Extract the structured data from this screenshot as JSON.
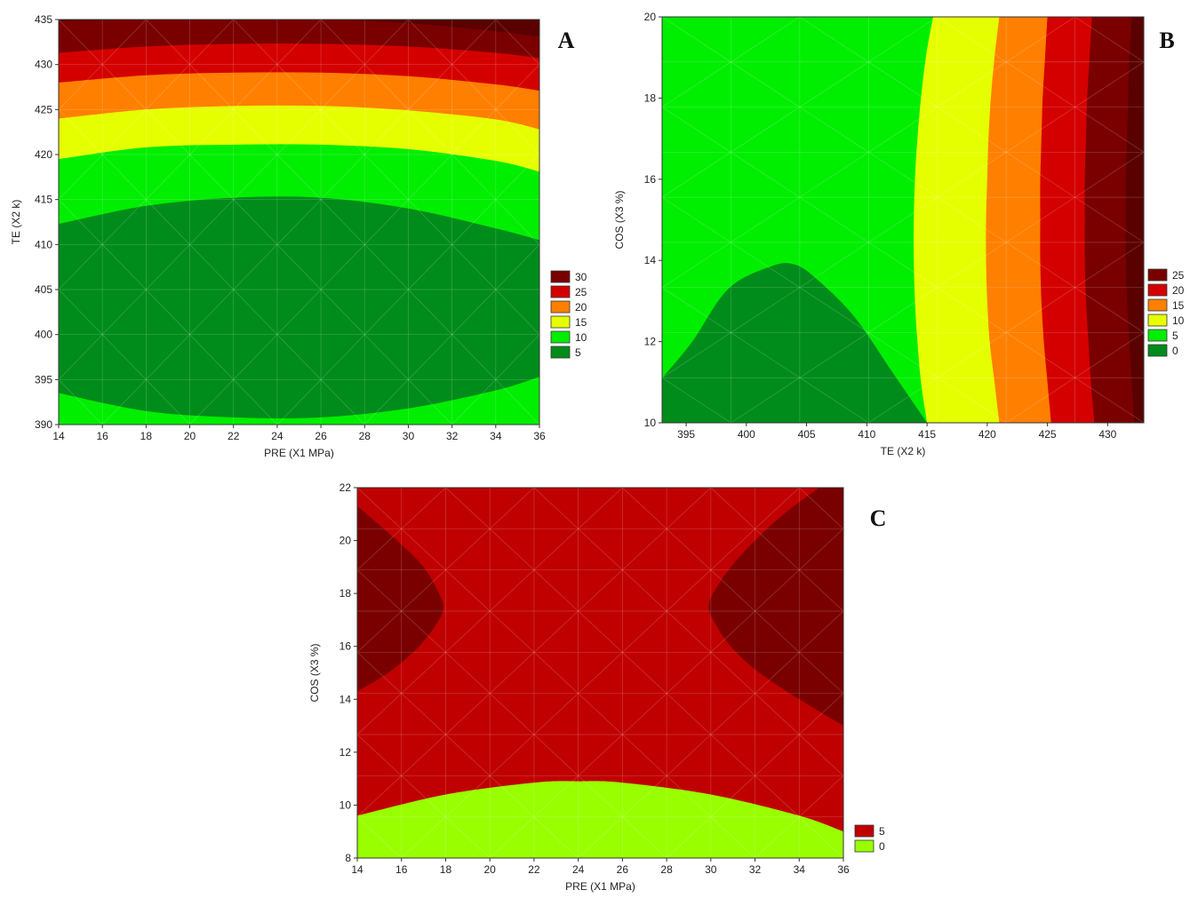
{
  "chart_data": [
    {
      "type": "heatmap",
      "panel_label": "A",
      "xlabel": "PRE (X1 MPa)",
      "ylabel": "TE (X2 k)",
      "xlim": [
        14,
        36
      ],
      "ylim": [
        390,
        435
      ],
      "xticks": [
        14,
        16,
        18,
        20,
        22,
        24,
        26,
        28,
        30,
        32,
        34,
        36
      ],
      "yticks": [
        390,
        395,
        400,
        405,
        410,
        415,
        420,
        425,
        430,
        435
      ],
      "legend": {
        "placement": "right-bottom",
        "labels": [
          "30",
          "25",
          "20",
          "15",
          "10",
          "5"
        ],
        "colors": [
          "#7a0000",
          "#d40000",
          "#ff7f00",
          "#e6ff00",
          "#00ee00",
          "#008c1a"
        ]
      },
      "contours": [
        {
          "level": 5,
          "x": [
            14,
            18,
            22,
            26,
            30,
            34,
            36
          ],
          "y_low": [
            393.5,
            391.5,
            390.8,
            390.8,
            391.8,
            393.8,
            395.3
          ],
          "y_high": [
            412.3,
            414.3,
            415.2,
            415.2,
            414.0,
            411.8,
            410.5
          ]
        },
        {
          "level": 10,
          "x": [
            14,
            18,
            22,
            26,
            30,
            34,
            36
          ],
          "y_high": [
            419.5,
            420.8,
            421.1,
            421.1,
            420.6,
            419.3,
            418.1
          ]
        },
        {
          "level": 15,
          "x": [
            14,
            18,
            22,
            26,
            30,
            34,
            36
          ],
          "y_high": [
            424.0,
            425.0,
            425.4,
            425.4,
            424.9,
            423.9,
            422.8
          ]
        },
        {
          "level": 20,
          "x": [
            14,
            18,
            22,
            26,
            30,
            34,
            36
          ],
          "y_high": [
            428.0,
            428.8,
            429.1,
            429.1,
            428.7,
            427.8,
            427.1
          ]
        },
        {
          "level": 25,
          "x": [
            14,
            18,
            22,
            26,
            30,
            34,
            36
          ],
          "y_high": [
            431.3,
            432.0,
            432.3,
            432.3,
            432.0,
            431.3,
            430.7
          ]
        },
        {
          "level": 30,
          "x": [
            14,
            18,
            22,
            26,
            30,
            34,
            36
          ],
          "y_high": [
            434.8,
            435.0,
            435.0,
            435.0,
            434.6,
            433.7,
            433.1
          ]
        }
      ]
    },
    {
      "type": "heatmap",
      "panel_label": "B",
      "xlabel": "TE (X2 k)",
      "ylabel": "COS (X3 %)",
      "xlim": [
        393,
        433
      ],
      "ylim": [
        10,
        20
      ],
      "xticks": [
        395,
        400,
        405,
        410,
        415,
        420,
        425,
        430
      ],
      "yticks": [
        10,
        12,
        14,
        16,
        18,
        20
      ],
      "legend": {
        "placement": "right-bottom",
        "labels": [
          "25",
          "20",
          "15",
          "10",
          "5",
          "0"
        ],
        "colors": [
          "#7a0000",
          "#d40000",
          "#ff7f00",
          "#e6ff00",
          "#00ee00",
          "#008c1a"
        ]
      },
      "contours": [
        {
          "level": 0,
          "x": [
            393,
            395.5,
            398.5,
            402,
            404,
            406,
            409,
            412,
            415
          ],
          "y": [
            11.1,
            12.0,
            13.3,
            13.85,
            13.9,
            13.5,
            12.6,
            11.3,
            10.0
          ]
        },
        {
          "level": 5,
          "y": [
            10,
            11,
            12,
            13,
            14,
            15,
            16,
            17,
            18,
            19,
            20
          ],
          "x": [
            415.0,
            414.5,
            414.2,
            414.0,
            413.9,
            413.9,
            414.0,
            414.2,
            414.5,
            414.9,
            415.5
          ]
        },
        {
          "level": 10,
          "y": [
            10,
            11,
            12,
            13,
            14,
            15,
            16,
            17,
            18,
            19,
            20
          ],
          "x": [
            421.0,
            420.6,
            420.2,
            420.0,
            419.9,
            419.9,
            420.0,
            420.1,
            420.3,
            420.6,
            421.0
          ]
        },
        {
          "level": 15,
          "y": [
            10,
            11,
            12,
            13,
            14,
            15,
            16,
            17,
            18,
            19,
            20
          ],
          "x": [
            425.3,
            425.0,
            424.7,
            424.5,
            424.4,
            424.4,
            424.4,
            424.5,
            424.6,
            424.8,
            425.0
          ]
        },
        {
          "level": 20,
          "y": [
            10,
            11,
            12,
            13,
            14,
            15,
            16,
            17,
            18,
            19,
            20
          ],
          "x": [
            428.9,
            428.6,
            428.4,
            428.2,
            428.1,
            428.1,
            428.1,
            428.2,
            428.3,
            428.5,
            428.7
          ]
        },
        {
          "level": 25,
          "y": [
            10,
            11,
            12,
            13,
            14,
            15,
            16,
            17,
            18,
            19,
            20
          ],
          "x": [
            432.2,
            432.0,
            431.8,
            431.6,
            431.5,
            431.5,
            431.5,
            431.6,
            431.7,
            431.8,
            432.0
          ]
        }
      ]
    },
    {
      "type": "heatmap",
      "panel_label": "C",
      "xlabel": "PRE (X1 MPa)",
      "ylabel": "COS (X3 %)",
      "xlim": [
        14,
        36
      ],
      "ylim": [
        8,
        22
      ],
      "xticks": [
        14,
        16,
        18,
        20,
        22,
        24,
        26,
        28,
        30,
        32,
        34,
        36
      ],
      "yticks": [
        8,
        10,
        12,
        14,
        16,
        18,
        20,
        22
      ],
      "legend": {
        "placement": "right-bottom",
        "labels": [
          "5",
          "0"
        ],
        "colors": [
          "#c00000",
          "#99ff00"
        ]
      },
      "contours": [
        {
          "level": 0,
          "x": [
            14,
            18,
            22,
            24,
            26,
            30,
            34,
            36
          ],
          "y": [
            9.6,
            10.4,
            10.85,
            10.9,
            10.85,
            10.4,
            9.6,
            9.0
          ]
        },
        {
          "level": 5,
          "side": "left",
          "y": [
            21.3,
            20,
            19,
            18,
            17.5,
            17,
            16,
            15,
            14.3
          ],
          "x": [
            14.0,
            15.8,
            17.0,
            17.7,
            17.9,
            17.7,
            16.8,
            15.4,
            14.0
          ]
        },
        {
          "level": 5,
          "side": "right",
          "y": [
            22,
            21,
            20,
            19,
            18,
            17.5,
            17,
            16,
            15,
            14,
            13
          ],
          "x": [
            34.9,
            33.3,
            32.0,
            30.9,
            30.1,
            29.9,
            30.1,
            30.9,
            32.2,
            34.0,
            36.0
          ]
        }
      ]
    }
  ]
}
